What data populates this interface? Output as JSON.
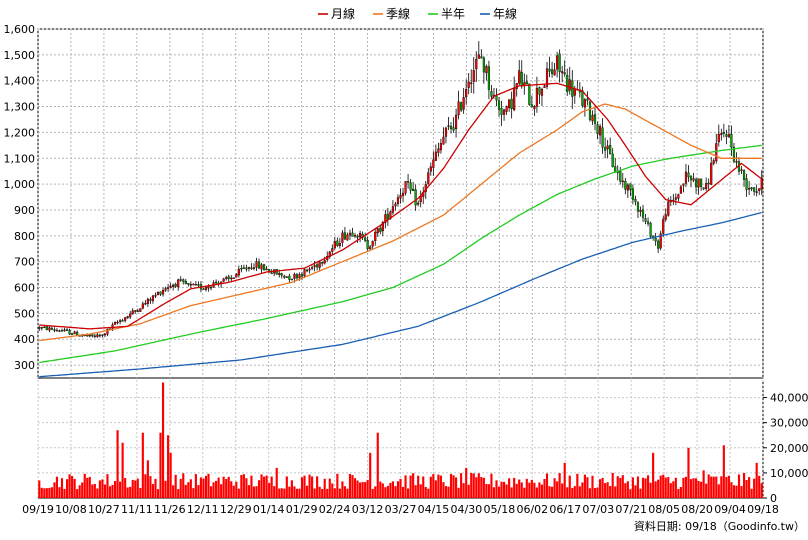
{
  "chart_data": {
    "type": "candlestick",
    "legend": [
      {
        "name": "月線",
        "color": "#cc0000"
      },
      {
        "name": "季線",
        "color": "#ee7722"
      },
      {
        "name": "半年",
        "color": "#22cc22"
      },
      {
        "name": "年線",
        "color": "#1a5fb4"
      }
    ],
    "price_axis": {
      "ylim": [
        250,
        1600
      ],
      "ticks": [
        "300",
        "400",
        "500",
        "600",
        "700",
        "800",
        "900",
        "1,000",
        "1,100",
        "1,200",
        "1,300",
        "1,400",
        "1,500",
        "1,600"
      ]
    },
    "volume_axis": {
      "ylim": [
        0,
        47000
      ],
      "ticks": [
        "0",
        "10,000",
        "20,000",
        "30,000",
        "40,000"
      ]
    },
    "date_labels": [
      "09/19",
      "10/08",
      "10/27",
      "11/11",
      "11/26",
      "12/11",
      "12/29",
      "01/14",
      "01/29",
      "02/24",
      "03/12",
      "03/27",
      "04/15",
      "04/30",
      "05/18",
      "06/02",
      "06/17",
      "07/03",
      "07/21",
      "08/05",
      "08/20",
      "09/04",
      "09/18"
    ],
    "price_keys": [
      [
        0,
        445
      ],
      [
        8,
        435
      ],
      [
        15,
        420
      ],
      [
        20,
        410
      ],
      [
        25,
        415
      ],
      [
        30,
        460
      ],
      [
        35,
        490
      ],
      [
        42,
        540
      ],
      [
        50,
        600
      ],
      [
        55,
        620
      ],
      [
        60,
        605
      ],
      [
        65,
        600
      ],
      [
        70,
        620
      ],
      [
        75,
        630
      ],
      [
        80,
        665
      ],
      [
        85,
        690
      ],
      [
        90,
        670
      ],
      [
        95,
        650
      ],
      [
        100,
        640
      ],
      [
        105,
        660
      ],
      [
        110,
        690
      ],
      [
        115,
        740
      ],
      [
        120,
        800
      ],
      [
        125,
        820
      ],
      [
        130,
        760
      ],
      [
        135,
        830
      ],
      [
        140,
        920
      ],
      [
        145,
        1000
      ],
      [
        150,
        920
      ],
      [
        155,
        1060
      ],
      [
        160,
        1180
      ],
      [
        165,
        1250
      ],
      [
        170,
        1420
      ],
      [
        175,
        1490
      ],
      [
        180,
        1330
      ],
      [
        185,
        1270
      ],
      [
        190,
        1410
      ],
      [
        195,
        1320
      ],
      [
        200,
        1400
      ],
      [
        205,
        1460
      ],
      [
        210,
        1380
      ],
      [
        215,
        1320
      ],
      [
        220,
        1250
      ],
      [
        225,
        1120
      ],
      [
        230,
        1020
      ],
      [
        235,
        960
      ],
      [
        240,
        850
      ],
      [
        245,
        760
      ],
      [
        248,
        900
      ],
      [
        252,
        950
      ],
      [
        256,
        1030
      ],
      [
        260,
        1010
      ],
      [
        264,
        980
      ],
      [
        268,
        1150
      ],
      [
        272,
        1210
      ],
      [
        276,
        1080
      ],
      [
        280,
        1000
      ],
      [
        284,
        980
      ],
      [
        286,
        1000
      ]
    ],
    "ma_month_keys": [
      [
        0,
        455
      ],
      [
        20,
        440
      ],
      [
        35,
        450
      ],
      [
        50,
        540
      ],
      [
        60,
        595
      ],
      [
        75,
        620
      ],
      [
        90,
        660
      ],
      [
        105,
        675
      ],
      [
        120,
        745
      ],
      [
        135,
        840
      ],
      [
        150,
        945
      ],
      [
        160,
        1060
      ],
      [
        170,
        1210
      ],
      [
        180,
        1340
      ],
      [
        190,
        1380
      ],
      [
        205,
        1390
      ],
      [
        215,
        1360
      ],
      [
        225,
        1250
      ],
      [
        232,
        1150
      ],
      [
        240,
        1030
      ],
      [
        248,
        940
      ],
      [
        258,
        920
      ],
      [
        268,
        1000
      ],
      [
        278,
        1080
      ],
      [
        286,
        1020
      ]
    ],
    "ma_quarter_keys": [
      [
        0,
        395
      ],
      [
        20,
        420
      ],
      [
        40,
        460
      ],
      [
        60,
        530
      ],
      [
        80,
        575
      ],
      [
        100,
        620
      ],
      [
        120,
        700
      ],
      [
        140,
        780
      ],
      [
        160,
        880
      ],
      [
        175,
        1000
      ],
      [
        190,
        1120
      ],
      [
        205,
        1210
      ],
      [
        215,
        1280
      ],
      [
        224,
        1310
      ],
      [
        232,
        1290
      ],
      [
        245,
        1220
      ],
      [
        258,
        1150
      ],
      [
        270,
        1100
      ],
      [
        286,
        1100
      ]
    ],
    "ma_half_keys": [
      [
        0,
        310
      ],
      [
        30,
        355
      ],
      [
        60,
        420
      ],
      [
        90,
        480
      ],
      [
        120,
        545
      ],
      [
        140,
        600
      ],
      [
        160,
        690
      ],
      [
        175,
        790
      ],
      [
        190,
        880
      ],
      [
        205,
        960
      ],
      [
        220,
        1020
      ],
      [
        235,
        1070
      ],
      [
        250,
        1100
      ],
      [
        270,
        1130
      ],
      [
        286,
        1150
      ]
    ],
    "ma_year_keys": [
      [
        0,
        255
      ],
      [
        40,
        285
      ],
      [
        80,
        320
      ],
      [
        120,
        380
      ],
      [
        150,
        450
      ],
      [
        175,
        545
      ],
      [
        195,
        630
      ],
      [
        215,
        710
      ],
      [
        235,
        775
      ],
      [
        255,
        820
      ],
      [
        270,
        850
      ],
      [
        286,
        890
      ]
    ],
    "volume_spikes": [
      [
        31,
        27000
      ],
      [
        33,
        22000
      ],
      [
        41,
        26000
      ],
      [
        43,
        15000
      ],
      [
        48,
        26000
      ],
      [
        49,
        46000
      ],
      [
        51,
        25000
      ],
      [
        52,
        18000
      ],
      [
        94,
        12000
      ],
      [
        131,
        18000
      ],
      [
        134,
        26000
      ],
      [
        169,
        12000
      ],
      [
        208,
        14000
      ],
      [
        243,
        18000
      ],
      [
        257,
        20000
      ],
      [
        263,
        11000
      ],
      [
        271,
        21000
      ],
      [
        284,
        14000
      ]
    ],
    "source_label": "資料日期: 09/18（Goodinfo.tw）"
  }
}
